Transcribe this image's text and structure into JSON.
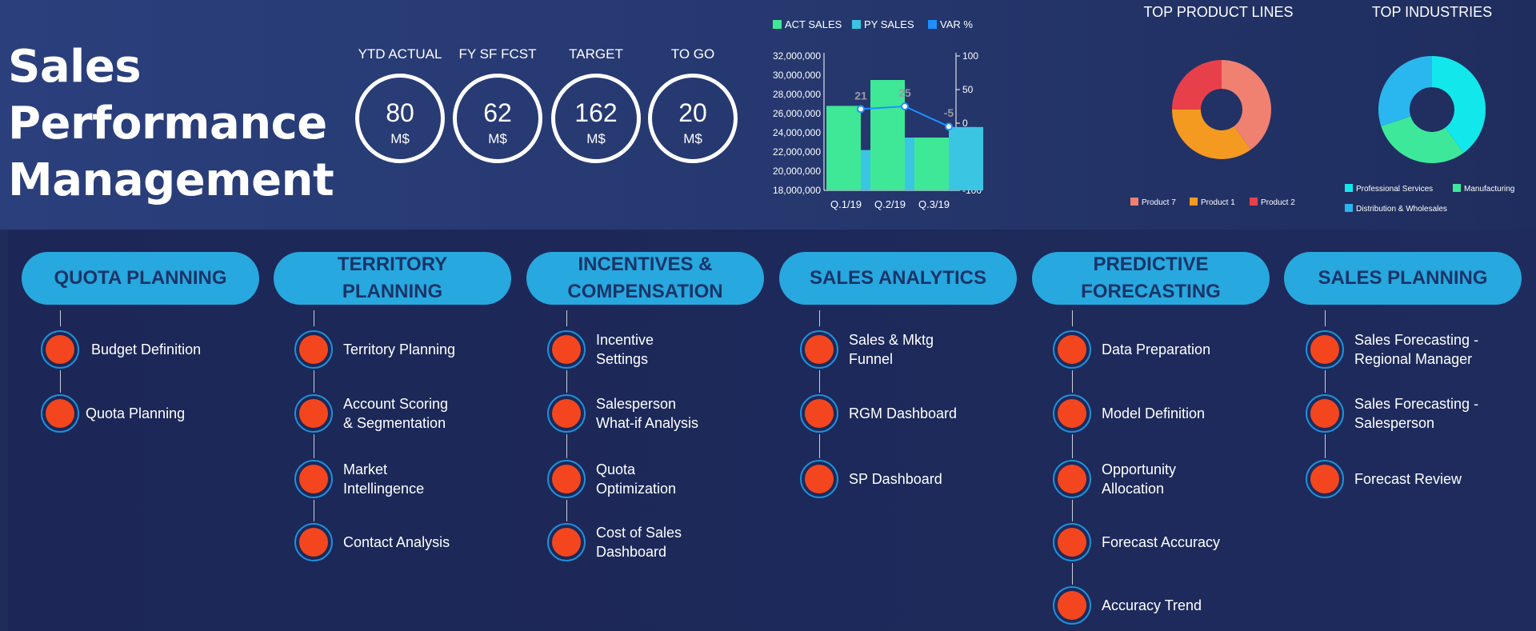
{
  "title": {
    "line1": "Sales",
    "line2": "Performance",
    "line3": "Management"
  },
  "kpis": [
    {
      "label": "YTD ACTUAL",
      "value": "80",
      "unit": "M$"
    },
    {
      "label": "FY SF FCST",
      "value": "62",
      "unit": "M$"
    },
    {
      "label": "TARGET",
      "value": "162",
      "unit": "M$"
    },
    {
      "label": "TO GO",
      "value": "20",
      "unit": "M$"
    }
  ],
  "colors": {
    "act": "#3ee897",
    "py": "#3ac6e3",
    "var": "#1e90ff",
    "pill": "#27a8df",
    "node": "#f3461f"
  },
  "chart_data": [
    {
      "type": "bar",
      "categories": [
        "Q.1/19",
        "Q.2/19",
        "Q.3/19"
      ],
      "series": [
        {
          "name": "ACT SALES",
          "values": [
            26800000,
            29500000,
            23500000
          ]
        },
        {
          "name": "PY SALES",
          "values": [
            22200000,
            23500000,
            24600000
          ]
        },
        {
          "name": "VAR %",
          "values": [
            21,
            25,
            -5
          ],
          "axis": "right",
          "style": "line"
        }
      ],
      "y_ticks": [
        "32,000,000",
        "30,000,000",
        "28,000,000",
        "26,000,000",
        "24,000,000",
        "22,000,000",
        "20,000,000",
        "18,000,000"
      ],
      "y2_ticks": [
        "100",
        "50",
        "0",
        "-50",
        "-100"
      ],
      "ylim": [
        18000000,
        32000000
      ],
      "y2lim": [
        -100,
        100
      ],
      "legend": "top",
      "data_labels": [
        "21",
        "25",
        "-5"
      ]
    },
    {
      "type": "pie",
      "title": "TOP PRODUCT LINES",
      "series": [
        {
          "name": "Product 7",
          "value": 40,
          "color": "#f08070"
        },
        {
          "name": "Product 1",
          "value": 35,
          "color": "#f49a20"
        },
        {
          "name": "Product 2",
          "value": 25,
          "color": "#e8404a"
        }
      ],
      "legend": "bottom"
    },
    {
      "type": "pie",
      "title": "TOP INDUSTRIES",
      "series": [
        {
          "name": "Professional Services",
          "value": 40,
          "color": "#12e8ec"
        },
        {
          "name": "Manufacturing",
          "value": 30,
          "color": "#3ee89a"
        },
        {
          "name": "Distribution & Wholesales",
          "value": 30,
          "color": "#2ab6ef"
        }
      ],
      "legend": "bottom"
    }
  ],
  "sections": [
    {
      "title": [
        "QUOTA PLANNING"
      ],
      "items": [
        [
          "Budget Definition"
        ],
        [
          "Quota Planning"
        ]
      ]
    },
    {
      "title": [
        "TERRITORY",
        "PLANNING"
      ],
      "items": [
        [
          "Territory Planning"
        ],
        [
          "Account Scoring",
          "& Segmentation"
        ],
        [
          "Market",
          "Intellingence"
        ],
        [
          "Contact Analysis"
        ]
      ]
    },
    {
      "title": [
        "INCENTIVES &",
        "COMPENSATION"
      ],
      "items": [
        [
          "Incentive",
          "Settings"
        ],
        [
          "Salesperson",
          "What-if Analysis"
        ],
        [
          "Quota",
          "Optimization"
        ],
        [
          "Cost of Sales",
          "Dashboard"
        ]
      ]
    },
    {
      "title": [
        "SALES ANALYTICS"
      ],
      "items": [
        [
          "Sales & Mktg",
          "Funnel"
        ],
        [
          "RGM Dashboard"
        ],
        [
          "SP Dashboard"
        ]
      ]
    },
    {
      "title": [
        "PREDICTIVE",
        "FORECASTING"
      ],
      "items": [
        [
          "Data Preparation"
        ],
        [
          "Model Definition"
        ],
        [
          "Opportunity",
          "Allocation"
        ],
        [
          "Forecast Accuracy"
        ],
        [
          "Accuracy Trend"
        ]
      ]
    },
    {
      "title": [
        "SALES PLANNING"
      ],
      "items": [
        [
          "Sales Forecasting -",
          "Regional Manager"
        ],
        [
          "Sales Forecasting -",
          "Salesperson"
        ],
        [
          "Forecast Review"
        ]
      ]
    }
  ]
}
